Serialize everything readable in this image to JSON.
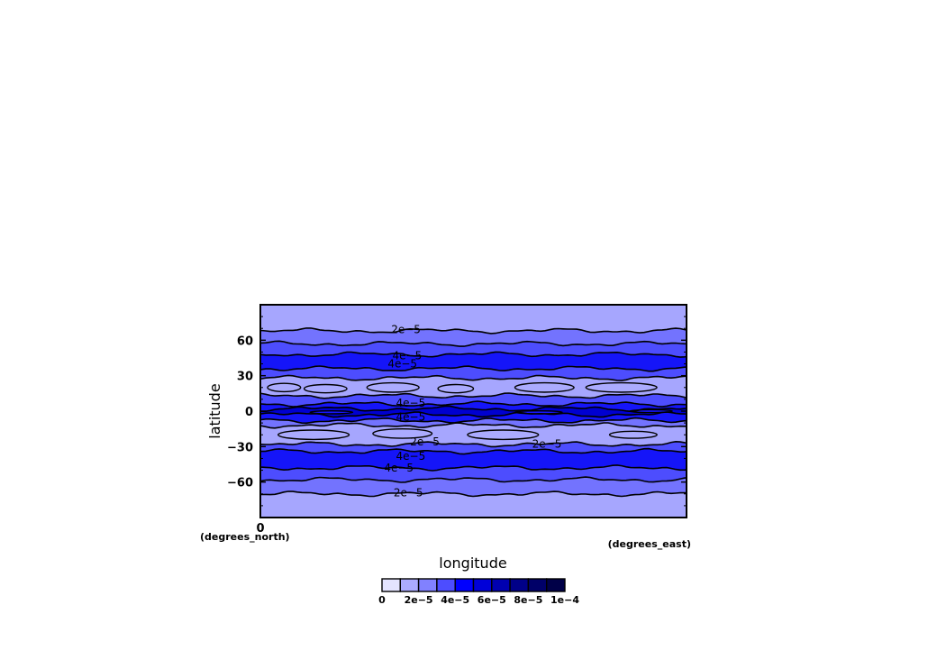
{
  "chart_data": {
    "type": "heatmap",
    "subtype": "filled-contour",
    "xlabel": "longitude",
    "ylabel": "latitude",
    "x_units": "(degrees_east)",
    "y_units": "(degrees_north)",
    "x_ticks": [
      "0"
    ],
    "y_ticks": [
      "60",
      "30",
      "0",
      "−30",
      "−60"
    ],
    "y_tick_values": [
      60,
      30,
      0,
      -30,
      -60
    ],
    "xlim": [
      0,
      360
    ],
    "ylim": [
      -90,
      90
    ],
    "grid": false,
    "contour_labels": [
      {
        "text": "2e−5",
        "lon": 123,
        "lat": 69
      },
      {
        "text": "4e−5",
        "lon": 124,
        "lat": 47
      },
      {
        "text": "4e−5",
        "lon": 120,
        "lat": 40
      },
      {
        "text": "4e−5",
        "lon": 127,
        "lat": 7
      },
      {
        "text": "4e−5",
        "lon": 127,
        "lat": -5
      },
      {
        "text": "2e−5",
        "lon": 139,
        "lat": -26
      },
      {
        "text": "2e−5",
        "lon": 242,
        "lat": -28
      },
      {
        "text": "4e−5",
        "lon": 127,
        "lat": -38
      },
      {
        "text": "4e−5",
        "lon": 117,
        "lat": -48
      },
      {
        "text": "2e−5",
        "lon": 125,
        "lat": -69
      }
    ],
    "bands": [
      {
        "lat_top": 90,
        "lat_bottom": 68,
        "level": 2
      },
      {
        "lat_top": 68,
        "lat_bottom": 57,
        "level": 3
      },
      {
        "lat_top": 57,
        "lat_bottom": 48,
        "level": 4
      },
      {
        "lat_top": 48,
        "lat_bottom": 36,
        "level": 5
      },
      {
        "lat_top": 36,
        "lat_bottom": 28,
        "level": 4
      },
      {
        "lat_top": 28,
        "lat_bottom": 13,
        "level": 2
      },
      {
        "lat_top": 13,
        "lat_bottom": 6,
        "level": 4
      },
      {
        "lat_top": 6,
        "lat_bottom": 2,
        "level": 5
      },
      {
        "lat_top": 2,
        "lat_bottom": -3,
        "level": 6
      },
      {
        "lat_top": -3,
        "lat_bottom": -8,
        "level": 5
      },
      {
        "lat_top": -8,
        "lat_bottom": -12,
        "level": 3
      },
      {
        "lat_top": -12,
        "lat_bottom": -28,
        "level": 2
      },
      {
        "lat_top": -28,
        "lat_bottom": -34,
        "level": 4
      },
      {
        "lat_top": -34,
        "lat_bottom": -48,
        "level": 5
      },
      {
        "lat_top": -48,
        "lat_bottom": -58,
        "level": 4
      },
      {
        "lat_top": -58,
        "lat_bottom": -70,
        "level": 3
      },
      {
        "lat_top": -70,
        "lat_bottom": -90,
        "level": 2
      }
    ],
    "colorbar": {
      "tick_labels": [
        "0",
        "2e−5",
        "4e−5",
        "6e−5",
        "8e−5",
        "1e−4"
      ],
      "colors": [
        "#e4e4ff",
        "#ababfe",
        "#8181ff",
        "#4d4dff",
        "#0000fe",
        "#0000d9",
        "#0000b0",
        "#000088",
        "#000068",
        "#000048"
      ]
    },
    "colors": {
      "level0": "#e4e4ff",
      "level1": "#ababfe",
      "level2": "#a6a6fe",
      "level3": "#7373fe",
      "level4": "#4d4dfe",
      "level5": "#1515f8",
      "level6": "#0000d0",
      "contour_line": "#000000"
    }
  }
}
